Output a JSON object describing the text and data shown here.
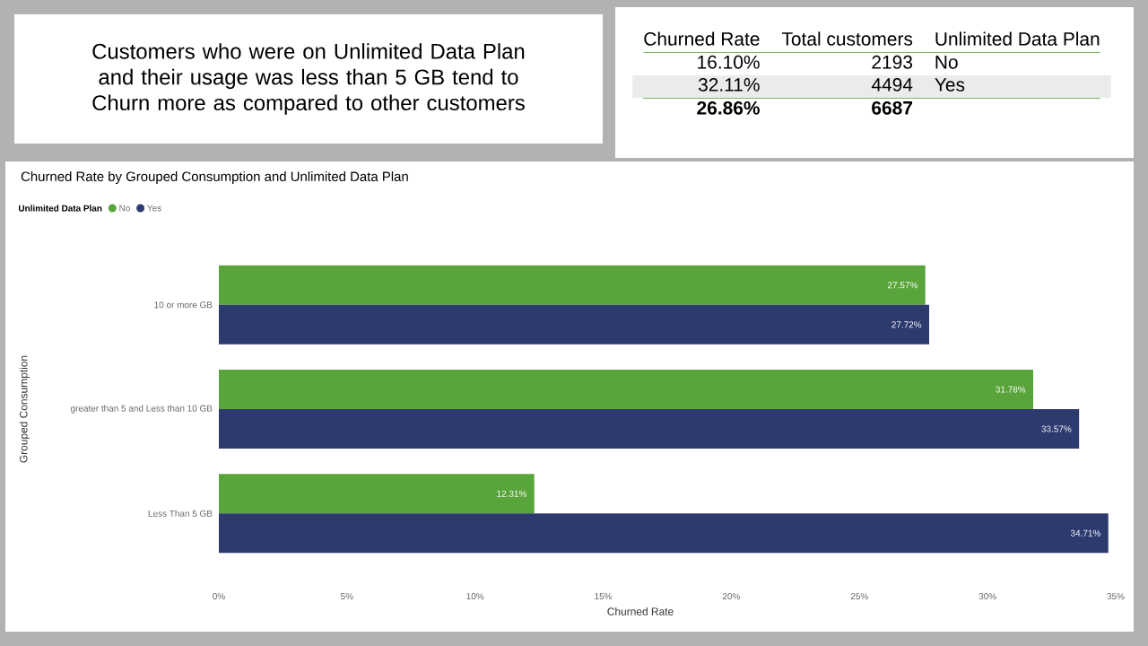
{
  "chart_data": [
    {
      "type": "other",
      "title": "Customers who were on Unlimited Data Plan and their usage was less than 5 GB tend to Churn more as compared to other customers"
    },
    {
      "type": "other",
      "annotations": [
        "Churned Rate",
        "Total customers",
        "Unlimited Data Plan",
        "16.10%",
        "2193",
        "No",
        "32.11%",
        "4494",
        "Yes",
        "26.86%",
        "6687"
      ]
    },
    {
      "type": "bar",
      "orientation": "horizontal",
      "title": "Churned Rate by Grouped Consumption and Unlimited Data Plan",
      "xlabel": "Churned Rate",
      "ylabel": "Grouped Consumption",
      "legend_title": "Unlimited Data Plan",
      "legend": "top left",
      "categories": [
        "10 or more GB",
        "greater than 5 and Less than 10 GB",
        "Less Than 5 GB"
      ],
      "series": [
        {
          "name": "No",
          "color": "#5aa43c",
          "values": [
            27.57,
            31.78,
            12.31
          ],
          "value_labels": [
            "27.57%",
            "31.78%",
            "12.31%"
          ]
        },
        {
          "name": "Yes",
          "color": "#2d3a6e",
          "values": [
            27.72,
            33.57,
            34.71
          ],
          "value_labels": [
            "27.72%",
            "33.57%",
            "34.71%"
          ]
        }
      ],
      "xlim": [
        0,
        35
      ],
      "xticks": [
        {
          "value": 0,
          "label": "0%"
        },
        {
          "value": 5,
          "label": "5%"
        },
        {
          "value": 10,
          "label": "10%"
        },
        {
          "value": 15,
          "label": "15%"
        },
        {
          "value": 20,
          "label": "20%"
        },
        {
          "value": 25,
          "label": "25%"
        },
        {
          "value": 30,
          "label": "30%"
        },
        {
          "value": 35,
          "label": "35%"
        }
      ]
    }
  ]
}
